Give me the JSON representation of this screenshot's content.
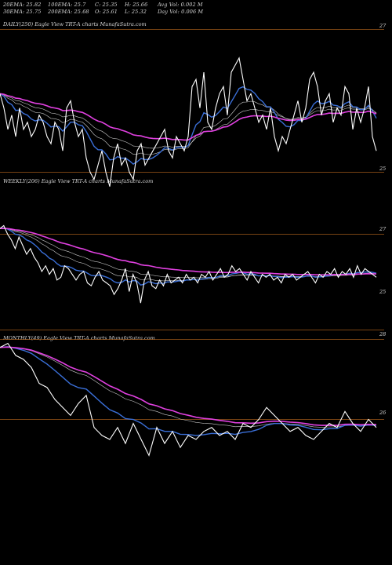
{
  "header": {
    "ema20": "20EMA: 25.82",
    "ema100": "100EMA: 25.7",
    "close": "C: 25.35",
    "high": "H: 25.66",
    "avg_vol": "Avg Vol: 0.002  M",
    "ema30": "30EMA: 25.75",
    "ema200": "200EMA: 25.68",
    "open": "O: 25.61",
    "low": "L: 25.32",
    "day_vol": "Day Vol: 0.006  M"
  },
  "panels": {
    "daily": {
      "label": "DAILY(250) Eagle  View  TRT-A charts MunafaSutra.com",
      "tick_top": "27",
      "tick_bottom": "25"
    },
    "weekly": {
      "label": "WEEKLY(206) Eagle  View  TRT-A charts MunafaSutra.com",
      "tick_top": "27",
      "tick_bottom": "25"
    },
    "monthly": {
      "label": "MONTHLY(49) Eagle  View  TRT-A charts MunafaSutra.com",
      "tick_top": "28",
      "tick_bottom": "26"
    }
  },
  "colors": {
    "background": "#000000",
    "price": "#ffffff",
    "ema_blue": "#3a6fd8",
    "ema_pink": "#e040e0",
    "ema_brown": "#b07030",
    "ema_white": "#c8c8c8",
    "gridline": "#a05a1a"
  },
  "chart_data": [
    {
      "type": "line",
      "title": "DAILY(250) Eagle  View  TRT-A charts MunafaSutra.com",
      "yticks": [
        27,
        25
      ],
      "series": [
        {
          "values": [
            26.1,
            25.9,
            25.6,
            25.8,
            25.5,
            25.9,
            25.6,
            25.7,
            25.5,
            25.6,
            25.8,
            25.7,
            25.5,
            25.4,
            25.7,
            25.6,
            25.3,
            25.9,
            26.0,
            25.7,
            25.5,
            25.6,
            25.2,
            25.0,
            24.9,
            25.1,
            25.3,
            25.0,
            24.8,
            25.2,
            25.4,
            25.1,
            25.2,
            25.0,
            24.9,
            25.3,
            25.4,
            25.1,
            25.2,
            25.3,
            25.4,
            25.5,
            25.6,
            25.3,
            25.2,
            25.5,
            25.4,
            25.3,
            25.5,
            26.2,
            26.3,
            25.9,
            26.4,
            25.7,
            25.6,
            25.9,
            26.1,
            26.2,
            25.8,
            26.4,
            26.5,
            26.6,
            26.3,
            26.0,
            26.1,
            25.9,
            25.7,
            25.8,
            25.6,
            25.9,
            25.5,
            25.3,
            25.5,
            25.4,
            25.6,
            25.8,
            26.0,
            25.7,
            25.9,
            26.3,
            26.4,
            26.2,
            25.8,
            26.0,
            26.1,
            25.7,
            25.9,
            25.8,
            26.2,
            26.1,
            25.6,
            25.9,
            25.7,
            25.9,
            26.2,
            25.5,
            25.3
          ]
        }
      ]
    },
    {
      "type": "line",
      "title": "WEEKLY(206) Eagle  View  TRT-A charts MunafaSutra.com",
      "yticks": [
        27,
        25
      ],
      "series": [
        {
          "values": [
            27.2,
            27.3,
            27.0,
            26.8,
            26.5,
            26.9,
            26.6,
            26.3,
            26.5,
            26.2,
            26.0,
            25.7,
            25.9,
            25.6,
            25.8,
            25.4,
            25.5,
            25.9,
            25.8,
            25.6,
            25.4,
            25.6,
            25.7,
            25.3,
            25.2,
            25.5,
            25.7,
            25.4,
            25.3,
            25.2,
            24.9,
            25.1,
            25.4,
            25.8,
            25.0,
            25.6,
            25.3,
            24.6,
            25.4,
            25.7,
            25.2,
            25.1,
            25.4,
            25.2,
            25.6,
            25.3,
            25.4,
            25.5,
            25.3,
            25.6,
            25.4,
            25.5,
            25.3,
            25.6,
            25.5,
            25.7,
            25.4,
            25.6,
            25.8,
            25.5,
            25.6,
            25.9,
            25.7,
            25.8,
            25.6,
            25.4,
            25.7,
            25.5,
            25.3,
            25.6,
            25.5,
            25.6,
            25.4,
            25.5,
            25.3,
            25.6,
            25.5,
            25.6,
            25.4,
            25.5,
            25.6,
            25.7,
            25.5,
            25.3,
            25.6,
            25.5,
            25.7,
            25.6,
            25.8,
            25.5,
            25.7,
            25.6,
            25.8,
            25.5,
            25.9,
            25.6,
            25.8,
            25.7,
            25.6,
            25.5
          ]
        }
      ]
    },
    {
      "type": "line",
      "title": "MONTHLY(49) Eagle  View  TRT-A charts MunafaSutra.com",
      "yticks": [
        28,
        26
      ],
      "series": [
        {
          "values": [
            27.8,
            27.9,
            27.6,
            27.5,
            27.3,
            26.9,
            26.8,
            26.5,
            26.3,
            26.1,
            26.4,
            26.6,
            25.8,
            25.6,
            25.5,
            25.8,
            25.4,
            25.9,
            25.5,
            25.1,
            25.8,
            25.4,
            25.7,
            25.3,
            25.6,
            25.5,
            25.7,
            25.8,
            25.6,
            25.7,
            25.5,
            25.9,
            25.8,
            26.0,
            26.3,
            26.1,
            25.9,
            25.7,
            25.8,
            25.6,
            25.5,
            25.7,
            25.9,
            25.8,
            26.2,
            25.9,
            25.7,
            26.0,
            25.8
          ]
        }
      ]
    }
  ]
}
